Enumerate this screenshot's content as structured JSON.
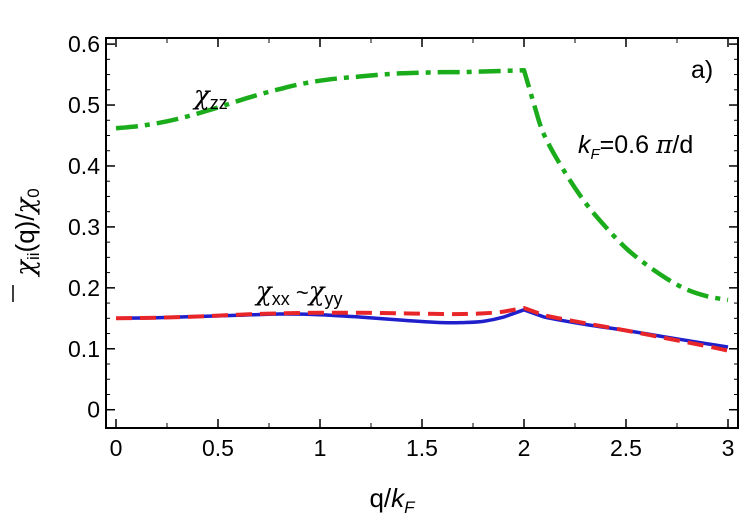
{
  "chart_data": {
    "type": "line",
    "panel_label": "a)",
    "xlabel": "q/k_F",
    "ylabel": "χ̄_ii(q)/χ_0",
    "xlim": [
      0,
      3
    ],
    "ylim": [
      -0.03,
      0.61
    ],
    "xticks": [
      0,
      0.5,
      1,
      1.5,
      2,
      2.5,
      3
    ],
    "xtick_labels": [
      "0",
      "0.5",
      "1",
      "1.5",
      "2",
      "2.5",
      "3"
    ],
    "yticks": [
      0,
      0.1,
      0.2,
      0.3,
      0.4,
      0.5,
      0.6
    ],
    "ytick_labels": [
      "0",
      "0.1",
      "0.2",
      "0.3",
      "0.4",
      "0.5",
      "0.6"
    ],
    "grid": false,
    "annotations": {
      "kf": "k_F=0.6 π/d",
      "zz_label": "χ_zz",
      "xx_yy_label": "χ_xx ~χ_yy"
    },
    "series": [
      {
        "name": "χ_zz",
        "color": "#1aac1a",
        "style": "dash-dot",
        "x": [
          0,
          0.1,
          0.2,
          0.3,
          0.4,
          0.5,
          0.6,
          0.7,
          0.8,
          0.9,
          1.0,
          1.1,
          1.2,
          1.3,
          1.4,
          1.5,
          1.6,
          1.7,
          1.8,
          1.9,
          2.0,
          2.05,
          2.1,
          2.2,
          2.3,
          2.4,
          2.5,
          2.6,
          2.7,
          2.8,
          2.9,
          3.0
        ],
        "values": [
          0.462,
          0.465,
          0.47,
          0.477,
          0.486,
          0.496,
          0.507,
          0.517,
          0.526,
          0.534,
          0.54,
          0.544,
          0.547,
          0.55,
          0.552,
          0.553,
          0.554,
          0.554,
          0.555,
          0.556,
          0.557,
          0.5,
          0.45,
          0.39,
          0.34,
          0.3,
          0.265,
          0.238,
          0.215,
          0.197,
          0.186,
          0.18
        ]
      },
      {
        "name": "χ_xx",
        "color": "#1f1fcc",
        "style": "solid",
        "x": [
          0,
          0.2,
          0.4,
          0.6,
          0.8,
          1.0,
          1.2,
          1.4,
          1.6,
          1.7,
          1.8,
          1.9,
          2.0,
          2.1,
          2.3,
          2.5,
          2.7,
          2.9,
          3.0
        ],
        "values": [
          0.15,
          0.151,
          0.153,
          0.155,
          0.157,
          0.156,
          0.152,
          0.147,
          0.143,
          0.143,
          0.145,
          0.152,
          0.164,
          0.152,
          0.14,
          0.13,
          0.119,
          0.108,
          0.103
        ]
      },
      {
        "name": "χ_yy",
        "color": "#e8262a",
        "style": "dashed",
        "x": [
          0,
          0.2,
          0.4,
          0.6,
          0.8,
          1.0,
          1.2,
          1.4,
          1.6,
          1.7,
          1.8,
          1.9,
          2.0,
          2.1,
          2.3,
          2.5,
          2.7,
          2.9,
          3.0
        ],
        "values": [
          0.15,
          0.151,
          0.153,
          0.156,
          0.158,
          0.159,
          0.159,
          0.158,
          0.157,
          0.157,
          0.158,
          0.161,
          0.167,
          0.155,
          0.142,
          0.13,
          0.117,
          0.104,
          0.097
        ]
      }
    ]
  }
}
